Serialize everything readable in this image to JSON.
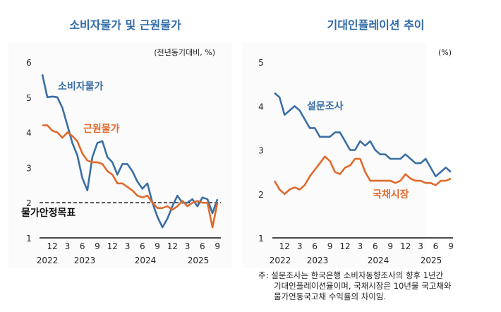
{
  "chart_data": [
    {
      "type": "line",
      "title": "소비자물가 및 근원물가",
      "unit_label": "(전년동기대비, %)",
      "ylim": [
        1,
        6
      ],
      "yticks": [
        "1",
        "2",
        "3",
        "4",
        "5",
        "6"
      ],
      "x": [
        "2022-10",
        "2022-11",
        "2022-12",
        "2023-01",
        "2023-02",
        "2023-03",
        "2023-04",
        "2023-05",
        "2023-06",
        "2023-07",
        "2023-08",
        "2023-09",
        "2023-10",
        "2023-11",
        "2023-12",
        "2024-01",
        "2024-02",
        "2024-03",
        "2024-04",
        "2024-05",
        "2024-06",
        "2024-07",
        "2024-08",
        "2024-09",
        "2024-10",
        "2024-11",
        "2024-12",
        "2025-01",
        "2025-02",
        "2025-03",
        "2025-04",
        "2025-05",
        "2025-06",
        "2025-07",
        "2025-08",
        "2025-09"
      ],
      "month_ticks": [
        "12",
        "3",
        "6",
        "9",
        "12",
        "3",
        "6",
        "9",
        "12",
        "3",
        "6",
        "9"
      ],
      "year_ticks": [
        "2022",
        "2023",
        "2024",
        "2025"
      ],
      "series": [
        {
          "name": "소비자물가",
          "color": "#3a6ea5",
          "values": [
            5.65,
            5.0,
            5.02,
            5.0,
            4.7,
            4.2,
            3.7,
            3.35,
            2.7,
            2.35,
            3.3,
            3.7,
            3.75,
            3.3,
            3.15,
            2.8,
            3.1,
            3.1,
            2.9,
            2.6,
            2.4,
            2.55,
            2.0,
            1.6,
            1.3,
            1.55,
            1.9,
            2.2,
            2.0,
            2.0,
            2.1,
            1.9,
            2.15,
            2.1,
            1.7,
            2.1
          ]
        },
        {
          "name": "근원물가",
          "color": "#e06a2c",
          "values": [
            4.2,
            4.2,
            4.05,
            4.0,
            3.85,
            4.0,
            3.9,
            3.75,
            3.4,
            3.2,
            3.15,
            3.15,
            3.1,
            2.9,
            2.8,
            2.55,
            2.55,
            2.45,
            2.35,
            2.2,
            2.15,
            2.2,
            2.0,
            1.85,
            1.85,
            1.9,
            1.8,
            1.9,
            2.05,
            1.9,
            2.0,
            2.05,
            2.0,
            2.0,
            1.3,
            2.0
          ]
        }
      ],
      "reference_line": {
        "value": 2,
        "label": "물가안정목표"
      }
    },
    {
      "type": "line",
      "title": "기대인플레이션 추이",
      "unit_label": "(%)",
      "ylim": [
        1,
        5
      ],
      "yticks": [
        "1",
        "2",
        "3",
        "4",
        "5"
      ],
      "x": [
        "2022-10",
        "2022-11",
        "2022-12",
        "2023-01",
        "2023-02",
        "2023-03",
        "2023-04",
        "2023-05",
        "2023-06",
        "2023-07",
        "2023-08",
        "2023-09",
        "2023-10",
        "2023-11",
        "2023-12",
        "2024-01",
        "2024-02",
        "2024-03",
        "2024-04",
        "2024-05",
        "2024-06",
        "2024-07",
        "2024-08",
        "2024-09",
        "2024-10",
        "2024-11",
        "2024-12",
        "2025-01",
        "2025-02",
        "2025-03",
        "2025-04",
        "2025-05",
        "2025-06",
        "2025-07",
        "2025-08",
        "2025-09"
      ],
      "month_ticks": [
        "12",
        "3",
        "6",
        "9",
        "12",
        "3",
        "6",
        "9",
        "12",
        "3",
        "6",
        "9"
      ],
      "year_ticks": [
        "2022",
        "2023",
        "2024",
        "2025"
      ],
      "series": [
        {
          "name": "설문조사",
          "color": "#3a6ea5",
          "values": [
            4.3,
            4.2,
            3.8,
            3.9,
            4.0,
            3.9,
            3.7,
            3.5,
            3.5,
            3.3,
            3.3,
            3.3,
            3.4,
            3.4,
            3.2,
            3.0,
            3.0,
            3.2,
            3.1,
            3.2,
            3.0,
            2.9,
            2.9,
            2.8,
            2.8,
            2.8,
            2.9,
            2.8,
            2.7,
            2.7,
            2.8,
            2.6,
            2.4,
            2.5,
            2.6,
            2.5
          ]
        },
        {
          "name": "국채시장",
          "color": "#e06a2c",
          "values": [
            2.3,
            2.1,
            2.0,
            2.1,
            2.15,
            2.1,
            2.2,
            2.4,
            2.55,
            2.7,
            2.85,
            2.75,
            2.5,
            2.45,
            2.6,
            2.65,
            2.8,
            2.8,
            2.5,
            2.3,
            2.3,
            2.3,
            2.3,
            2.3,
            2.25,
            2.3,
            2.45,
            2.35,
            2.3,
            2.3,
            2.25,
            2.25,
            2.2,
            2.3,
            2.3,
            2.35
          ]
        }
      ]
    }
  ],
  "note": {
    "prefix": "주:",
    "lines": [
      "설문조사는 한국은행 소비자동향조사의 향후 1년간",
      "기대인플레이션율이며, 국채시장은 10년물 국고채와",
      "물가연동국고채 수익률의 차이임."
    ]
  }
}
